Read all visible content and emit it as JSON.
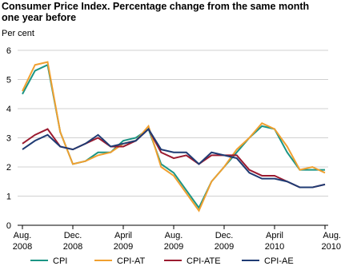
{
  "chart_data": {
    "type": "line",
    "title": "Consumer Price Index. Percentage change from the same month one year before",
    "y_label": "Per cent",
    "categories": [
      "Aug.\n2008",
      null,
      null,
      null,
      "Dec.\n2008",
      null,
      null,
      null,
      "April\n2009",
      null,
      null,
      null,
      "Aug.\n2009",
      null,
      null,
      null,
      "Dec.\n2009",
      null,
      null,
      null,
      "April\n2010",
      null,
      null,
      null,
      "Aug.\n2010"
    ],
    "series": [
      {
        "name": "CPI",
        "color": "#1b9585",
        "values": [
          4.5,
          5.3,
          5.5,
          3.2,
          2.1,
          2.2,
          2.5,
          2.5,
          2.9,
          3.0,
          3.3,
          2.1,
          1.8,
          1.2,
          0.6,
          1.5,
          2.0,
          2.5,
          3.0,
          3.4,
          3.3,
          2.5,
          1.9,
          1.9,
          1.9
        ]
      },
      {
        "name": "CPI-AT",
        "color": "#f0a030",
        "values": [
          4.6,
          5.5,
          5.6,
          3.2,
          2.1,
          2.2,
          2.4,
          2.5,
          2.8,
          2.9,
          3.4,
          2.0,
          1.7,
          1.1,
          0.5,
          1.5,
          2.0,
          2.6,
          3.0,
          3.5,
          3.3,
          2.7,
          1.9,
          2.0,
          1.8
        ]
      },
      {
        "name": "CPI-ATE",
        "color": "#9b1b30",
        "values": [
          2.8,
          3.1,
          3.3,
          2.7,
          2.6,
          2.8,
          3.0,
          2.7,
          2.7,
          2.9,
          3.3,
          2.5,
          2.3,
          2.4,
          2.1,
          2.4,
          2.4,
          2.4,
          1.9,
          1.7,
          1.7,
          1.5,
          1.3,
          1.3,
          1.4
        ]
      },
      {
        "name": "CPI-AE",
        "color": "#1f3b73",
        "values": [
          2.6,
          2.9,
          3.1,
          2.7,
          2.6,
          2.8,
          3.1,
          2.7,
          2.8,
          2.9,
          3.3,
          2.6,
          2.5,
          2.5,
          2.1,
          2.5,
          2.4,
          2.3,
          1.8,
          1.6,
          1.6,
          1.5,
          1.3,
          1.3,
          1.4
        ]
      }
    ],
    "ylim": [
      0,
      6
    ],
    "yticks": [
      0,
      1,
      2,
      3,
      4,
      5,
      6
    ],
    "grid": true
  }
}
